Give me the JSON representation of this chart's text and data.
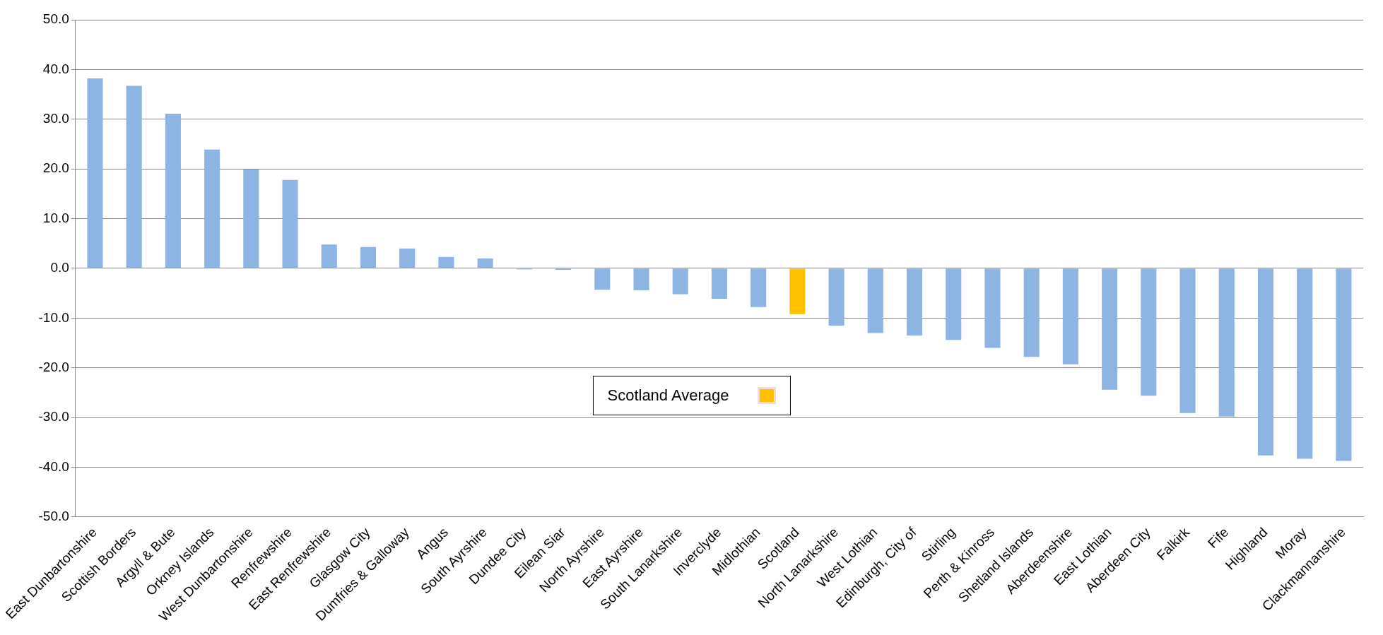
{
  "chart_data": {
    "type": "bar",
    "categories": [
      "East Dunbartonshire",
      "Scottish Borders",
      "Argyll & Bute",
      "Orkney Islands",
      "West Dunbartonshire",
      "Renfrewshire",
      "East Renfrewshire",
      "Glasgow City",
      "Dumfries & Galloway",
      "Angus",
      "South Ayrshire",
      "Dundee City",
      "Eilean Siar",
      "North Ayrshire",
      "East Ayrshire",
      "South Lanarkshire",
      "Inverclyde",
      "Midlothian",
      "Scotland",
      "North Lanarkshire",
      "West Lothian",
      "Edinburgh, City of",
      "Stirling",
      "Perth & Kinross",
      "Shetland Islands",
      "Aberdeenshire",
      "East Lothian",
      "Aberdeen City",
      "Falkirk",
      "Fife",
      "Highland",
      "Moray",
      "Clackmannanshire"
    ],
    "series": [
      {
        "color": "#8db4e2",
        "values": [
          38.2,
          36.7,
          31.1,
          23.9,
          19.9,
          17.8,
          4.8,
          4.3,
          4.0,
          2.3,
          2.0,
          -0.2,
          -0.3,
          -4.3,
          -4.4,
          -5.2,
          -6.1,
          -7.8,
          null,
          -11.5,
          -13.0,
          -13.5,
          -14.4,
          -16.0,
          -17.8,
          -19.3,
          -24.4,
          -25.6,
          -29.1,
          -29.8,
          -37.6,
          -38.3,
          -38.7
        ]
      },
      {
        "name": "Scotland Average",
        "color": "#ffc000",
        "values": [
          null,
          null,
          null,
          null,
          null,
          null,
          null,
          null,
          null,
          null,
          null,
          null,
          null,
          null,
          null,
          null,
          null,
          null,
          -9.2,
          null,
          null,
          null,
          null,
          null,
          null,
          null,
          null,
          null,
          null,
          null,
          null,
          null,
          null
        ]
      }
    ],
    "ylim": [
      -50,
      50
    ],
    "yticks": [
      {
        "value": -50,
        "label": "-50.0"
      },
      {
        "value": -40,
        "label": "-40.0"
      },
      {
        "value": -30,
        "label": "-30.0"
      },
      {
        "value": -20,
        "label": "-20.0"
      },
      {
        "value": -10,
        "label": "-10.0"
      },
      {
        "value": 0,
        "label": "0.0"
      },
      {
        "value": 10,
        "label": "10.0"
      },
      {
        "value": 20,
        "label": "20.0"
      },
      {
        "value": 30,
        "label": "30.0"
      },
      {
        "value": 40,
        "label": "40.0"
      },
      {
        "value": 50,
        "label": "50.0"
      }
    ],
    "grid": "y",
    "legend": "bottom"
  }
}
